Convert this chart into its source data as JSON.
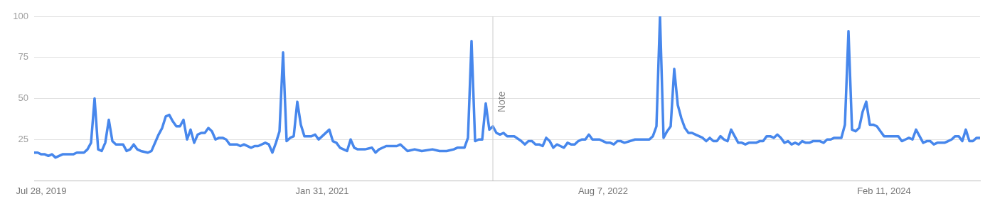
{
  "chart_data": {
    "type": "line",
    "x": [
      "2019-07-14",
      "2019-07-21",
      "2019-07-28",
      "2019-08-04",
      "2019-08-11",
      "2019-08-18",
      "2019-08-25",
      "2019-09-08",
      "2019-09-29",
      "2019-10-06",
      "2019-10-20",
      "2019-10-27",
      "2019-11-03",
      "2019-11-10",
      "2019-11-17",
      "2019-11-24",
      "2019-12-01",
      "2019-12-08",
      "2019-12-15",
      "2019-12-22",
      "2020-01-05",
      "2020-01-12",
      "2020-01-19",
      "2020-01-26",
      "2020-02-02",
      "2020-02-09",
      "2020-02-23",
      "2020-03-01",
      "2020-03-15",
      "2020-03-22",
      "2020-03-29",
      "2020-04-05",
      "2020-04-12",
      "2020-04-19",
      "2020-04-26",
      "2020-05-03",
      "2020-05-10",
      "2020-05-17",
      "2020-05-24",
      "2020-05-31",
      "2020-06-07",
      "2020-06-14",
      "2020-06-21",
      "2020-06-28",
      "2020-07-05",
      "2020-07-12",
      "2020-07-19",
      "2020-07-26",
      "2020-08-02",
      "2020-08-16",
      "2020-08-23",
      "2020-08-30",
      "2020-09-13",
      "2020-09-20",
      "2020-09-27",
      "2020-10-11",
      "2020-10-18",
      "2020-10-25",
      "2020-11-01",
      "2020-11-08",
      "2020-11-15",
      "2020-11-22",
      "2020-11-29",
      "2020-12-06",
      "2020-12-13",
      "2020-12-20",
      "2020-12-27",
      "2021-01-10",
      "2021-01-17",
      "2021-01-24",
      "2021-01-31",
      "2021-02-14",
      "2021-02-21",
      "2021-02-28",
      "2021-03-07",
      "2021-03-14",
      "2021-03-21",
      "2021-03-28",
      "2021-04-04",
      "2021-04-11",
      "2021-04-25",
      "2021-05-09",
      "2021-05-16",
      "2021-05-23",
      "2021-06-06",
      "2021-06-27",
      "2021-07-04",
      "2021-07-18",
      "2021-08-01",
      "2021-08-15",
      "2021-09-05",
      "2021-09-19",
      "2021-10-03",
      "2021-10-17",
      "2021-10-24",
      "2021-11-07",
      "2021-11-14",
      "2021-11-21",
      "2021-11-28",
      "2021-12-05",
      "2021-12-12",
      "2021-12-19",
      "2021-12-26",
      "2022-01-02",
      "2022-01-09",
      "2022-01-16",
      "2022-01-23",
      "2022-01-30",
      "2022-02-13",
      "2022-02-27",
      "2022-03-06",
      "2022-03-13",
      "2022-03-20",
      "2022-03-27",
      "2022-04-03",
      "2022-04-10",
      "2022-04-17",
      "2022-04-24",
      "2022-05-01",
      "2022-05-08",
      "2022-05-15",
      "2022-05-22",
      "2022-05-29",
      "2022-06-05",
      "2022-06-12",
      "2022-06-19",
      "2022-06-26",
      "2022-07-03",
      "2022-07-10",
      "2022-07-17",
      "2022-07-31",
      "2022-08-07",
      "2022-08-14",
      "2022-08-21",
      "2022-08-28",
      "2022-09-04",
      "2022-09-11",
      "2022-09-18",
      "2022-10-09",
      "2022-11-06",
      "2022-11-13",
      "2022-11-20",
      "2022-11-27",
      "2022-12-04",
      "2022-12-11",
      "2022-12-18",
      "2022-12-25",
      "2023-01-01",
      "2023-01-08",
      "2023-01-15",
      "2023-01-22",
      "2023-01-29",
      "2023-02-05",
      "2023-02-12",
      "2023-02-19",
      "2023-02-26",
      "2023-03-05",
      "2023-03-12",
      "2023-03-19",
      "2023-03-26",
      "2023-04-02",
      "2023-04-09",
      "2023-04-16",
      "2023-04-23",
      "2023-04-30",
      "2023-05-07",
      "2023-05-14",
      "2023-05-21",
      "2023-06-04",
      "2023-06-11",
      "2023-06-18",
      "2023-06-25",
      "2023-07-02",
      "2023-07-09",
      "2023-07-16",
      "2023-07-23",
      "2023-07-30",
      "2023-08-06",
      "2023-08-13",
      "2023-08-20",
      "2023-08-27",
      "2023-09-03",
      "2023-09-10",
      "2023-09-17",
      "2023-09-24",
      "2023-10-08",
      "2023-10-15",
      "2023-10-22",
      "2023-10-29",
      "2023-11-05",
      "2023-11-19",
      "2023-11-26",
      "2023-12-03",
      "2023-12-10",
      "2023-12-17",
      "2023-12-24",
      "2023-12-31",
      "2024-01-07",
      "2024-01-14",
      "2024-01-21",
      "2024-01-28",
      "2024-02-04",
      "2024-02-11",
      "2024-02-25",
      "2024-03-10",
      "2024-03-17",
      "2024-03-24",
      "2024-03-31",
      "2024-04-07",
      "2024-04-14",
      "2024-04-21",
      "2024-04-28",
      "2024-05-05",
      "2024-05-12",
      "2024-05-19",
      "2024-05-26",
      "2024-06-09",
      "2024-06-16",
      "2024-06-23",
      "2024-06-30",
      "2024-07-07",
      "2024-07-14",
      "2024-07-21",
      "2024-07-28",
      "2024-08-04",
      "2024-08-11",
      "2024-08-18"
    ],
    "series": [
      {
        "color": "#4787ec",
        "values": [
          17,
          17,
          16,
          16,
          15,
          16,
          14,
          16,
          16,
          17,
          17,
          19,
          23,
          50,
          19,
          18,
          23,
          37,
          24,
          22,
          22,
          18,
          19,
          22,
          19,
          18,
          17,
          18,
          28,
          32,
          39,
          40,
          36,
          33,
          33,
          37,
          25,
          31,
          23,
          28,
          29,
          29,
          32,
          30,
          25,
          26,
          26,
          25,
          22,
          22,
          21,
          22,
          20,
          21,
          21,
          23,
          22,
          17,
          23,
          30,
          78,
          24,
          26,
          27,
          48,
          34,
          27,
          27,
          28,
          25,
          27,
          31,
          24,
          23,
          20,
          19,
          18,
          25,
          20,
          19,
          19,
          20,
          17,
          19,
          21,
          21,
          22,
          18,
          19,
          18,
          19,
          18,
          18,
          19,
          20,
          20,
          26,
          85,
          24,
          25,
          25,
          47,
          31,
          33,
          29,
          28,
          29,
          27,
          27,
          24,
          22,
          24,
          24,
          22,
          22,
          21,
          26,
          24,
          20,
          22,
          21,
          20,
          23,
          22,
          22,
          24,
          25,
          25,
          28,
          25,
          25,
          24,
          23,
          23,
          22,
          24,
          24,
          23,
          25,
          25,
          27,
          33,
          100,
          26,
          30,
          33,
          68,
          46,
          38,
          32,
          29,
          29,
          28,
          27,
          26,
          24,
          26,
          24,
          24,
          27,
          25,
          24,
          31,
          27,
          23,
          23,
          22,
          23,
          23,
          24,
          24,
          27,
          27,
          26,
          28,
          26,
          23,
          24,
          22,
          23,
          22,
          24,
          23,
          23,
          24,
          24,
          23,
          25,
          25,
          26,
          26,
          34,
          91,
          31,
          30,
          32,
          42,
          48,
          34,
          34,
          33,
          30,
          27,
          27,
          27,
          24,
          25,
          26,
          25,
          31,
          27,
          23,
          24,
          24,
          22,
          23,
          23,
          24,
          25,
          27,
          27,
          24,
          31,
          24,
          24,
          26,
          26
        ]
      }
    ],
    "xlim": [
      "2019-07-14",
      "2024-08-18"
    ],
    "xticks": [
      {
        "value": "2019-07-28",
        "label": "Jul 28, 2019"
      },
      {
        "value": "2021-01-31",
        "label": "Jan 31, 2021"
      },
      {
        "value": "2022-08-07",
        "label": "Aug 7, 2022"
      },
      {
        "value": "2024-02-11",
        "label": "Feb 11, 2024"
      }
    ],
    "ylim": [
      0,
      100
    ],
    "yticks": [
      25,
      50,
      75,
      100
    ],
    "grid": "y",
    "ref_lines": [
      {
        "axis": "x",
        "value": "2022-01-02",
        "label": "Note",
        "color": "#cccccc"
      }
    ]
  }
}
